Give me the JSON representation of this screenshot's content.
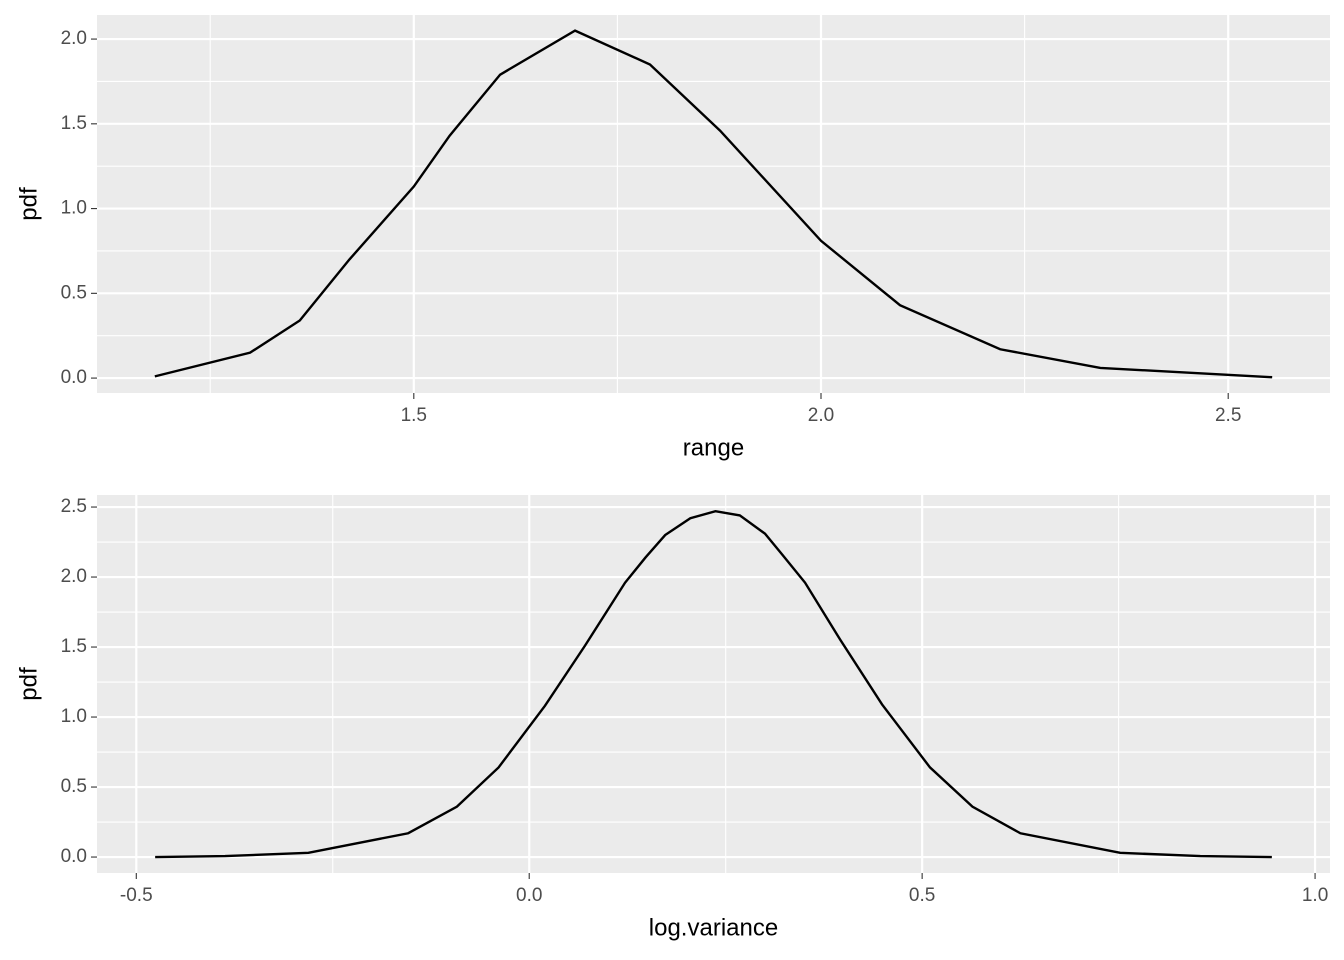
{
  "chart_data": [
    {
      "type": "line",
      "x_label": "range",
      "y_label": "pdf",
      "x": [
        1.182,
        1.299,
        1.36,
        1.421,
        1.5,
        1.544,
        1.606,
        1.698,
        1.79,
        1.876,
        2.0,
        2.097,
        2.22,
        2.343,
        2.554
      ],
      "series": [
        {
          "color": "#000000",
          "values": [
            0.01,
            0.15,
            0.34,
            0.7,
            1.13,
            1.43,
            1.79,
            2.05,
            1.85,
            1.46,
            0.81,
            0.43,
            0.17,
            0.06,
            0.005
          ]
        }
      ],
      "xlim": [
        1.111,
        2.625
      ],
      "ylim": [
        -0.088,
        2.142
      ],
      "xticks": [
        1.5,
        {
          "value": 2,
          "label": "2.0"
        },
        2.5
      ],
      "yticks": [
        {
          "value": 0,
          "label": "0.0"
        },
        0.5,
        {
          "value": 1,
          "label": "1.0"
        },
        1.5,
        {
          "value": 2,
          "label": "2.0"
        }
      ],
      "x_minor_breaks": [
        1.25,
        1.75,
        2.25
      ],
      "y_minor_breaks": [
        0.25,
        0.75,
        1.25,
        1.75
      ],
      "grid": true
    },
    {
      "type": "line",
      "x_label": "log.variance",
      "y_label": "pdf",
      "x": [
        -0.476,
        -0.387,
        -0.281,
        -0.154,
        -0.092,
        -0.039,
        0.02,
        0.071,
        0.122,
        0.148,
        0.173,
        0.205,
        0.237,
        0.268,
        0.3,
        0.322,
        0.351,
        0.396,
        0.449,
        0.51,
        0.564,
        0.625,
        0.752,
        0.854,
        0.945
      ],
      "series": [
        {
          "color": "#000000",
          "values": [
            0,
            0.007,
            0.03,
            0.17,
            0.36,
            0.64,
            1.08,
            1.51,
            1.96,
            2.14,
            2.3,
            2.42,
            2.47,
            2.44,
            2.31,
            2.16,
            1.96,
            1.55,
            1.09,
            0.64,
            0.36,
            0.17,
            0.03,
            0.007,
            0
          ]
        }
      ],
      "xlim": [
        -0.55,
        1.019
      ],
      "ylim": [
        -0.114,
        2.586
      ],
      "xticks": [
        -0.5,
        {
          "value": 0,
          "label": "0.0"
        },
        0.5,
        {
          "value": 1,
          "label": "1.0"
        }
      ],
      "yticks": [
        {
          "value": 0,
          "label": "0.0"
        },
        0.5,
        {
          "value": 1,
          "label": "1.0"
        },
        1.5,
        {
          "value": 2,
          "label": "2.0"
        },
        2.5
      ],
      "x_minor_breaks": [
        -0.25,
        0.25,
        0.75
      ],
      "y_minor_breaks": [
        0.25,
        0.75,
        1.25,
        1.75,
        2.25
      ],
      "grid": true
    }
  ]
}
